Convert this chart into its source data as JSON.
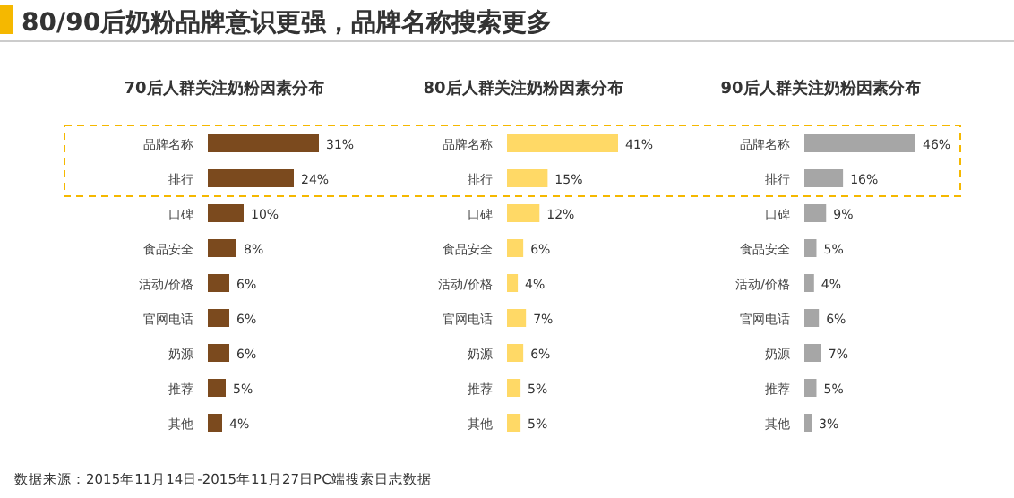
{
  "chart_data": [
    {
      "type": "bar",
      "orientation": "horizontal",
      "title": "70后人群关注奶粉因素分布",
      "annotations": [
        "80/90后奶粉品牌意识更强，品牌名称搜索更多"
      ],
      "categories": [
        "品牌名称",
        "排行",
        "口碑",
        "食品安全",
        "活动/价格",
        "官网电话",
        "奶源",
        "推荐",
        "其他"
      ],
      "values": [
        31,
        24,
        10,
        8,
        6,
        6,
        6,
        5,
        4
      ],
      "value_labels": [
        "31%",
        "24%",
        "10%",
        "8%",
        "6%",
        "6%",
        "6%",
        "5%",
        "4%"
      ],
      "color": "#7b4a1e",
      "tick_labels": "y"
    },
    {
      "type": "bar",
      "orientation": "horizontal",
      "title": "80后人群关注奶粉因素分布",
      "categories": [
        "品牌名称",
        "排行",
        "口碑",
        "食品安全",
        "活动/价格",
        "官网电话",
        "奶源",
        "推荐",
        "其他"
      ],
      "values": [
        41,
        15,
        12,
        6,
        4,
        7,
        6,
        5,
        5
      ],
      "value_labels": [
        "41%",
        "15%",
        "12%",
        "6%",
        "4%",
        "7%",
        "6%",
        "5%",
        "5%"
      ],
      "color": "#ffd966",
      "tick_labels": "y"
    },
    {
      "type": "bar",
      "orientation": "horizontal",
      "title": "90后人群关注奶粉因素分布",
      "annotations": [
        "数据来源：2015年11月14日-2015年11月27日PC端搜索日志数据"
      ],
      "categories": [
        "品牌名称",
        "排行",
        "口碑",
        "食品安全",
        "活动/价格",
        "官网电话",
        "奶源",
        "推荐",
        "其他"
      ],
      "values": [
        46,
        16,
        9,
        5,
        4,
        6,
        7,
        5,
        3
      ],
      "value_labels": [
        "46%",
        "16%",
        "9%",
        "5%",
        "4%",
        "6%",
        "7%",
        "5%",
        "3%"
      ],
      "color": "#a6a6a6",
      "tick_labels": "y"
    }
  ]
}
